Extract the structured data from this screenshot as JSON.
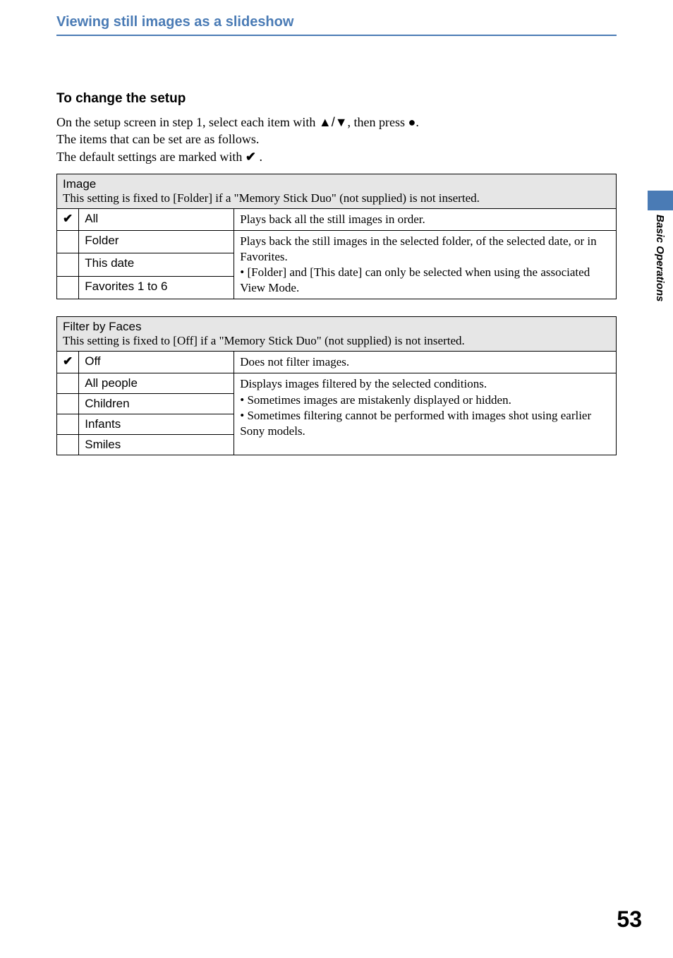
{
  "section": {
    "title": "Viewing still images as a slideshow",
    "title_color": "#4a7bb5"
  },
  "setup": {
    "heading": "To change the setup",
    "line1_a": "On the setup screen in step 1, select each item with ",
    "line1_b": ", then press ",
    "line1_c": ".",
    "line2": "The items that can be set are as follows.",
    "line3_a": "The default settings are marked with ",
    "line3_b": "."
  },
  "icons": {
    "up_down": "▲/▼",
    "dot": "●",
    "check": "✔"
  },
  "table1": {
    "header_title": "Image",
    "header_desc": "This setting is fixed to [Folder] if a \"Memory Stick Duo\" (not supplied) is not inserted.",
    "rows": {
      "all": {
        "label": "All",
        "desc": "Plays back all the still images in order."
      },
      "folder": {
        "label": "Folder"
      },
      "thisdate": {
        "label": "This date"
      },
      "favorites": {
        "label": "Favorites 1 to 6"
      }
    },
    "merged_desc_line1": "Plays back the still images in the selected folder, of the selected date, or in Favorites.",
    "merged_desc_bullet": "• [Folder] and [This date] can only be selected when using the associated View Mode."
  },
  "table2": {
    "header_title": "Filter by Faces",
    "header_desc": "This setting is fixed to [Off] if a \"Memory Stick Duo\" (not supplied) is not inserted.",
    "rows": {
      "off": {
        "label": "Off",
        "desc": "Does not filter images."
      },
      "allpeople": {
        "label": "All people"
      },
      "children": {
        "label": "Children"
      },
      "infants": {
        "label": "Infants"
      },
      "smiles": {
        "label": "Smiles"
      }
    },
    "merged_desc_line1": "Displays images filtered by the selected conditions.",
    "merged_desc_bullet1": "• Sometimes images are mistakenly displayed or hidden.",
    "merged_desc_bullet2": "• Sometimes filtering cannot be performed with images shot using earlier Sony models."
  },
  "side_tab": {
    "label": "Basic Operations",
    "color": "#4a7bb5"
  },
  "page_number": "53"
}
